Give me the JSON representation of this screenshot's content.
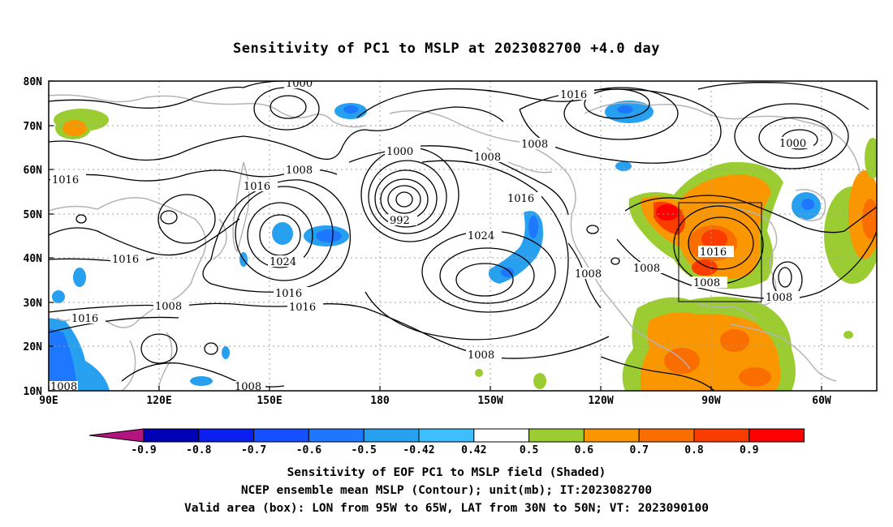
{
  "title": "Sensitivity of PC1 to MSLP at 2023082700 +4.0 day",
  "lat_labels": [
    "80N",
    "70N",
    "60N",
    "50N",
    "40N",
    "30N",
    "20N",
    "10N"
  ],
  "lon_labels": [
    "90E",
    "120E",
    "150E",
    "180",
    "150W",
    "120W",
    "90W",
    "60W"
  ],
  "contour_labels": [
    "1000",
    "1016",
    "1008",
    "1000",
    "1008",
    "1000",
    "1016",
    "1016",
    "1008",
    "992",
    "1016",
    "1024",
    "1024",
    "1016",
    "1016",
    "1008",
    "1016",
    "1016",
    "1008",
    "1008",
    "1008",
    "1016",
    "1008",
    "1008",
    "1008",
    "1008"
  ],
  "colorbar": {
    "labels": [
      "-0.9",
      "-0.8",
      "-0.7",
      "-0.6",
      "-0.5",
      "-0.42",
      "0.42",
      "0.5",
      "0.6",
      "0.7",
      "0.8",
      "0.9"
    ],
    "colors": [
      "#0000b4",
      "#0a1ef0",
      "#1450ff",
      "#1e78ff",
      "#28a0f0",
      "#3cbeff",
      "#ffffff",
      "#9bcd32",
      "#fa9600",
      "#fa6e00",
      "#fa3c00",
      "#ff0000"
    ],
    "low_color": "#b4147f",
    "high_color": "#ff9ed2"
  },
  "footer": {
    "line1": "Sensitivity of EOF PC1 to MSLP field (Shaded)",
    "line2": "NCEP ensemble mean MSLP (Contour); unit(mb); IT:2023082700",
    "line3": "Valid area (box): LON from 95W to 65W, LAT from 30N to 50N; VT: 2023090100"
  }
}
